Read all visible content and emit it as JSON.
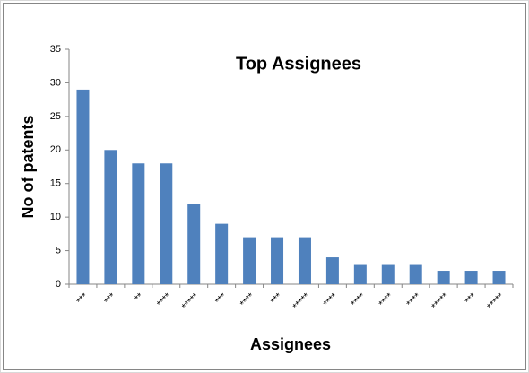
{
  "chart_data": {
    "type": "bar",
    "title": "Top Assignees",
    "x_label": "Assignees",
    "y_label": "No of patents",
    "categories": [
      "***",
      "***",
      "**",
      "****",
      "*****",
      "***",
      "****",
      "***",
      "*****",
      "****",
      "****",
      "****",
      "****",
      "*****",
      "***",
      "*****"
    ],
    "values": [
      29,
      20,
      18,
      18,
      12,
      9,
      7,
      7,
      7,
      4,
      3,
      3,
      3,
      2,
      2,
      2
    ],
    "color": "#4f81bd",
    "ylim": [
      0,
      35
    ],
    "yticks": [
      0,
      5,
      10,
      15,
      20,
      25,
      30,
      35
    ],
    "grid": false
  }
}
